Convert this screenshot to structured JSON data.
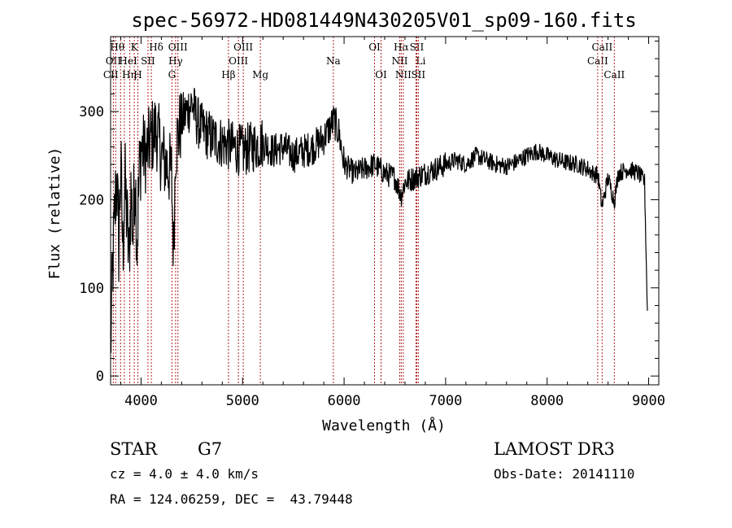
{
  "chart_data": {
    "type": "line",
    "title": "spec-56972-HD081449N430205V01_sp09-160.fits",
    "xlabel": "Wavelength (Å)",
    "ylabel": "Flux (relative)",
    "xlim": [
      3700,
      9100
    ],
    "ylim": [
      -10,
      385
    ],
    "x_ticks": [
      4000,
      5000,
      6000,
      7000,
      8000,
      9000
    ],
    "y_ticks": [
      0,
      100,
      200,
      300
    ],
    "line_color": "#000000",
    "marker_color": "#b22222",
    "series": [
      {
        "x": [
          3700,
          3720,
          3740,
          3760,
          3780,
          3800,
          3820,
          3840,
          3860,
          3880,
          3900,
          3920,
          3940,
          3960,
          3980,
          4000,
          4050,
          4100,
          4150,
          4200,
          4250,
          4300,
          4320,
          4340,
          4380,
          4400,
          4450,
          4500,
          4550,
          4600,
          4700,
          4800,
          4900,
          5000,
          5100,
          5200,
          5300,
          5400,
          5500,
          5600,
          5700,
          5800,
          5850,
          5900,
          5950,
          6000,
          6100,
          6200,
          6300,
          6400,
          6500,
          6562,
          6600,
          6700,
          6800,
          6900,
          7000,
          7100,
          7200,
          7300,
          7400,
          7500,
          7600,
          7700,
          7800,
          7900,
          8000,
          8100,
          8200,
          8300,
          8400,
          8450,
          8500,
          8540,
          8600,
          8662,
          8700,
          8800,
          8900,
          8960,
          8990
        ],
        "y": [
          30,
          120,
          180,
          230,
          150,
          240,
          140,
          220,
          180,
          130,
          210,
          160,
          240,
          150,
          220,
          260,
          250,
          270,
          280,
          250,
          240,
          230,
          140,
          260,
          280,
          290,
          300,
          310,
          290,
          280,
          270,
          265,
          260,
          255,
          260,
          265,
          255,
          260,
          250,
          255,
          260,
          270,
          280,
          290,
          275,
          240,
          230,
          235,
          240,
          230,
          225,
          205,
          220,
          225,
          230,
          235,
          240,
          245,
          240,
          250,
          245,
          240,
          238,
          243,
          250,
          255,
          250,
          245,
          242,
          240,
          235,
          230,
          228,
          192,
          225,
          198,
          230,
          235,
          230,
          220,
          60
        ]
      }
    ],
    "lines": [
      {
        "w": 3727,
        "label": "OII",
        "row": 2,
        "dx": 0
      },
      {
        "w": 3750,
        "label": "CII",
        "row": 3,
        "dx": -6
      },
      {
        "w": 3798,
        "label": "Hθ",
        "row": 1,
        "dx": -4
      },
      {
        "w": 3835,
        "label": "Hη",
        "row": 3,
        "dx": 6
      },
      {
        "w": 3889,
        "label": "HeI",
        "row": 2,
        "dx": -2
      },
      {
        "w": 3933,
        "label": "K",
        "row": 1,
        "dx": 0
      },
      {
        "w": 3968,
        "label": "H",
        "row": 3,
        "dx": 0
      },
      {
        "w": 4068,
        "label": "SII",
        "row": 2,
        "dx": 0
      },
      {
        "w": 4101,
        "label": "Hδ",
        "row": 1,
        "dx": 6
      },
      {
        "w": 4304,
        "label": "G",
        "row": 3,
        "dx": 0
      },
      {
        "w": 4340,
        "label": "Hγ",
        "row": 2,
        "dx": 0
      },
      {
        "w": 4363,
        "label": "OIII",
        "row": 1,
        "dx": 0
      },
      {
        "w": 4861,
        "label": "Hβ",
        "row": 3,
        "dx": 0
      },
      {
        "w": 4959,
        "label": "OIII",
        "row": 2,
        "dx": 0
      },
      {
        "w": 5007,
        "label": "OIII",
        "row": 1,
        "dx": 0
      },
      {
        "w": 5175,
        "label": "Mg",
        "row": 3,
        "dx": 0
      },
      {
        "w": 5894,
        "label": "Na",
        "row": 2,
        "dx": 0
      },
      {
        "w": 6300,
        "label": "OI",
        "row": 1,
        "dx": 0
      },
      {
        "w": 6364,
        "label": "OI",
        "row": 3,
        "dx": 0
      },
      {
        "w": 6548,
        "label": "NII",
        "row": 2,
        "dx": 0
      },
      {
        "w": 6563,
        "label": "Hα",
        "row": 1,
        "dx": 0
      },
      {
        "w": 6583,
        "label": "NII",
        "row": 3,
        "dx": 0
      },
      {
        "w": 6708,
        "label": "Li",
        "row": 2,
        "dx": 6
      },
      {
        "w": 6716,
        "label": "SII",
        "row": 1,
        "dx": 0
      },
      {
        "w": 6731,
        "label": "SII",
        "row": 3,
        "dx": 0
      },
      {
        "w": 8498,
        "label": "CaII",
        "row": 2,
        "dx": 0
      },
      {
        "w": 8542,
        "label": "CaII",
        "row": 1,
        "dx": 0
      },
      {
        "w": 8662,
        "label": "CaII",
        "row": 3,
        "dx": 0
      }
    ]
  },
  "info": {
    "object_type": "STAR",
    "spectral_class": "G7",
    "redshift": "cz = 4.0 ± 4.0 km/s",
    "coords": "RA = 124.06259, DEC =  43.79448",
    "survey": "LAMOST DR3",
    "obs_date": "Obs-Date: 20141110"
  }
}
